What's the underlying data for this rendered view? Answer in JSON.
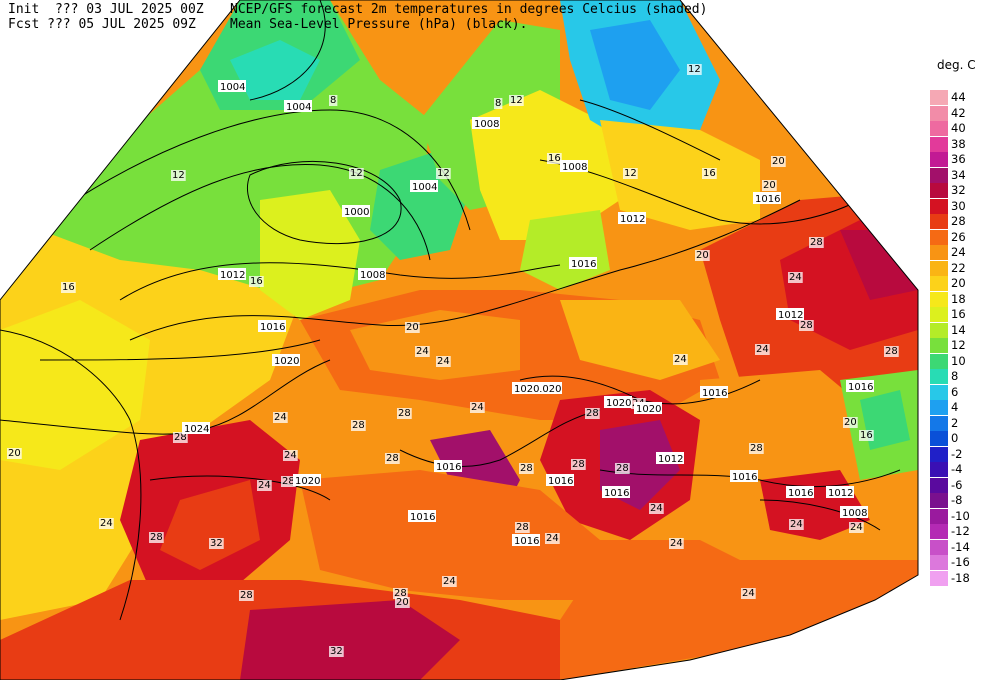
{
  "header": {
    "line1_left": "Init  ??? 03 JUL 2025 00Z",
    "line1_right": "NCEP/GFS forecast 2m temperatures in degrees Celcius (shaded)",
    "line2_left": "Fcst ??? 05 JUL 2025 09Z",
    "line2_right": "Mean Sea-Level Pressure (hPa) (black)."
  },
  "legend": {
    "title": "deg. C",
    "levels": [
      {
        "value": "44",
        "color": "#f5a8b4"
      },
      {
        "value": "42",
        "color": "#f28ca8"
      },
      {
        "value": "40",
        "color": "#ee6aa0"
      },
      {
        "value": "38",
        "color": "#e23a9a"
      },
      {
        "value": "36",
        "color": "#c21a94"
      },
      {
        "value": "34",
        "color": "#a2106a"
      },
      {
        "value": "32",
        "color": "#b80a3e"
      },
      {
        "value": "30",
        "color": "#d41222"
      },
      {
        "value": "28",
        "color": "#e83c14"
      },
      {
        "value": "26",
        "color": "#f56a14"
      },
      {
        "value": "24",
        "color": "#f89414"
      },
      {
        "value": "22",
        "color": "#fab414"
      },
      {
        "value": "20",
        "color": "#fcd21a"
      },
      {
        "value": "18",
        "color": "#f6e81a"
      },
      {
        "value": "16",
        "color": "#dcf01e"
      },
      {
        "value": "14",
        "color": "#b4ec28"
      },
      {
        "value": "12",
        "color": "#78e03c"
      },
      {
        "value": "10",
        "color": "#3cd874"
      },
      {
        "value": "8",
        "color": "#28dcb4"
      },
      {
        "value": "6",
        "color": "#28c8e8"
      },
      {
        "value": "4",
        "color": "#1ea0f0"
      },
      {
        "value": "2",
        "color": "#1478e8"
      },
      {
        "value": "0",
        "color": "#0a50d8"
      },
      {
        "value": "-2",
        "color": "#2020c8"
      },
      {
        "value": "-4",
        "color": "#3a10b4"
      },
      {
        "value": "-6",
        "color": "#5a0a9e"
      },
      {
        "value": "-8",
        "color": "#7a108e"
      },
      {
        "value": "-10",
        "color": "#9a1a9e"
      },
      {
        "value": "-12",
        "color": "#b42ab4"
      },
      {
        "value": "-14",
        "color": "#c850c8"
      },
      {
        "value": "-16",
        "color": "#dc78dc"
      },
      {
        "value": "-18",
        "color": "#f0a0f0"
      }
    ]
  },
  "temperature_labels": [
    "12",
    "8",
    "12",
    "12",
    "8",
    "16",
    "12",
    "16",
    "12",
    "12",
    "16",
    "20",
    "20",
    "16",
    "24",
    "20",
    "20",
    "24",
    "24",
    "24",
    "24",
    "28",
    "28",
    "24",
    "24",
    "28",
    "28",
    "24",
    "28",
    "28",
    "28",
    "32",
    "28",
    "24",
    "20",
    "28",
    "28",
    "24",
    "24",
    "24",
    "28",
    "24",
    "24",
    "24",
    "28",
    "24",
    "28",
    "20",
    "16",
    "20",
    "24",
    "28",
    "28",
    "28",
    "24",
    "32",
    "28"
  ],
  "pressure_labels": [
    "1004",
    "1004",
    "1008",
    "1008",
    "1004",
    "1000",
    "1008",
    "1012",
    "1012",
    "1016",
    "1016",
    "1020",
    "1024",
    "1020",
    "1016",
    "1016",
    "1016",
    "1020",
    "1020",
    "1016",
    "1012",
    "1016",
    "1016",
    "1016",
    "1016",
    "1012",
    "1008",
    "1016",
    "1012",
    "1016",
    "1020",
    "1020"
  ]
}
